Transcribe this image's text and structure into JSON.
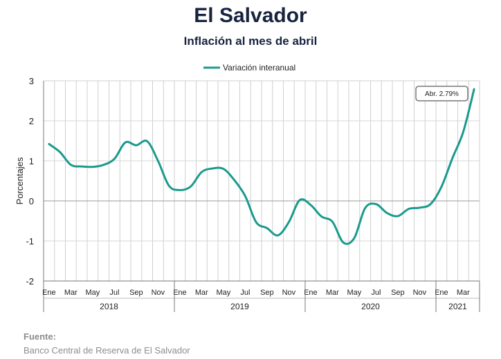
{
  "chart_data": {
    "type": "line",
    "title": "El Salvador",
    "subtitle": "Inflación al mes de abril",
    "ylabel": "Porcentajes",
    "ylim": [
      -2,
      3
    ],
    "yticks": [
      3,
      2,
      1,
      0,
      -1,
      -2
    ],
    "legend": {
      "entries": [
        "Variación interanual"
      ],
      "placement": "top-center"
    },
    "grid": true,
    "x_tick_labels": [
      "Ene",
      "Mar",
      "May",
      "Jul",
      "Sep",
      "Nov",
      "Ene",
      "Mar",
      "May",
      "Jul",
      "Sep",
      "Nov",
      "Ene",
      "Mar",
      "May",
      "Jul",
      "Sep",
      "Nov",
      "Ene",
      "Mar"
    ],
    "years": [
      "2018",
      "2019",
      "2020",
      "2021"
    ],
    "x": [
      "2018-01",
      "2018-02",
      "2018-03",
      "2018-04",
      "2018-05",
      "2018-06",
      "2018-07",
      "2018-08",
      "2018-09",
      "2018-10",
      "2018-11",
      "2018-12",
      "2019-01",
      "2019-02",
      "2019-03",
      "2019-04",
      "2019-05",
      "2019-06",
      "2019-07",
      "2019-08",
      "2019-09",
      "2019-10",
      "2019-11",
      "2019-12",
      "2020-01",
      "2020-02",
      "2020-03",
      "2020-04",
      "2020-05",
      "2020-06",
      "2020-07",
      "2020-08",
      "2020-09",
      "2020-10",
      "2020-11",
      "2020-12",
      "2021-01",
      "2021-02",
      "2021-03",
      "2021-04"
    ],
    "series": [
      {
        "name": "Variación interanual",
        "color": "#1a9a8c",
        "values": [
          1.42,
          1.22,
          0.9,
          0.86,
          0.85,
          0.9,
          1.05,
          1.46,
          1.39,
          1.49,
          1.0,
          0.38,
          0.27,
          0.36,
          0.72,
          0.81,
          0.8,
          0.52,
          0.12,
          -0.53,
          -0.68,
          -0.86,
          -0.53,
          0.02,
          -0.1,
          -0.39,
          -0.52,
          -1.04,
          -0.93,
          -0.18,
          -0.08,
          -0.3,
          -0.38,
          -0.2,
          -0.17,
          -0.08,
          0.35,
          1.06,
          1.72,
          2.79
        ]
      }
    ],
    "annotation": {
      "text": "Abr. 2.79%",
      "x": "2021-04",
      "y": 2.79
    }
  },
  "source": {
    "label": "Fuente:",
    "text": "Banco Central de Reserva de El Salvador"
  }
}
